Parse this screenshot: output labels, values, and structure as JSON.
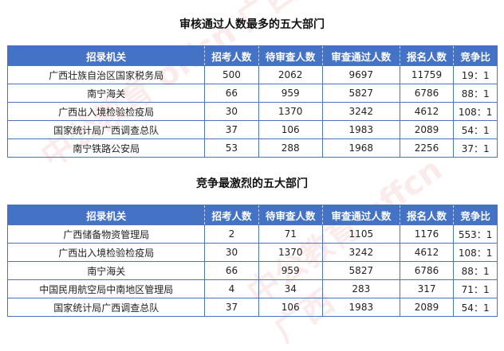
{
  "watermark": "中公教育 offcn 广西",
  "tables": [
    {
      "title": "审核通过人数最多的五大部门",
      "headers": [
        "招录机关",
        "招考人数",
        "待审查人数",
        "审查通过人数",
        "报名人数",
        "竞争比"
      ],
      "rows": [
        [
          "广西壮族自治区国家税务局",
          "500",
          "2062",
          "9697",
          "11759",
          "19：1"
        ],
        [
          "南宁海关",
          "66",
          "959",
          "5827",
          "6786",
          "88：1"
        ],
        [
          "广西出入境检验检疫局",
          "30",
          "1370",
          "3242",
          "4612",
          "108：1"
        ],
        [
          "国家统计局广西调查总队",
          "37",
          "106",
          "1983",
          "2089",
          "54：1"
        ],
        [
          "南宁铁路公安局",
          "53",
          "288",
          "1968",
          "2256",
          "37：1"
        ]
      ]
    },
    {
      "title": "竞争最激烈的五大部门",
      "headers": [
        "招录机关",
        "招考人数",
        "待审查人数",
        "审查通过人数",
        "报名人数",
        "竞争比"
      ],
      "rows": [
        [
          "广西储备物资管理局",
          "2",
          "71",
          "1105",
          "1176",
          "553：1"
        ],
        [
          "广西出入境检验检疫局",
          "30",
          "1370",
          "3242",
          "4612",
          "108：1"
        ],
        [
          "南宁海关",
          "66",
          "959",
          "5827",
          "6786",
          "88：1"
        ],
        [
          "中国民用航空局中南地区管理局",
          "4",
          "34",
          "283",
          "317",
          "71：1"
        ],
        [
          "国家统计局广西调查总队",
          "37",
          "106",
          "1983",
          "2089",
          "54：1"
        ]
      ]
    }
  ]
}
